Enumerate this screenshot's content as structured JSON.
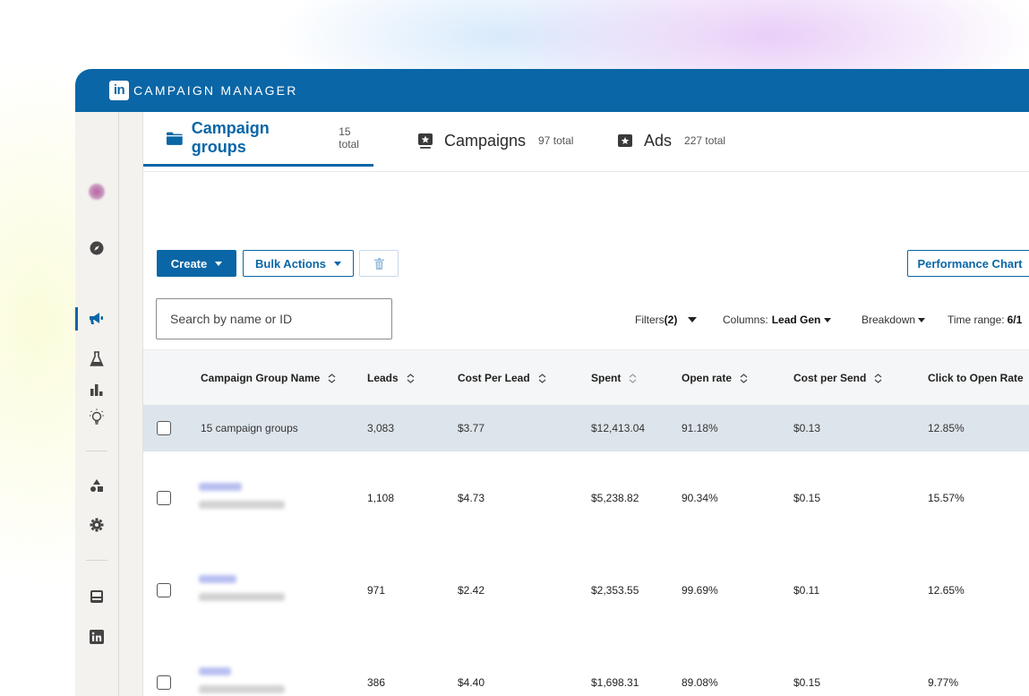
{
  "app": {
    "logo_text": "in",
    "title": "CAMPAIGN MANAGER"
  },
  "sidebar": {
    "items": [
      {
        "name": "account-avatar",
        "icon": "avatar"
      },
      {
        "name": "sidebar-item-discover",
        "icon": "compass-icon"
      },
      {
        "name": "sidebar-item-campaigns",
        "icon": "megaphone-icon",
        "active": true
      },
      {
        "name": "sidebar-item-tests",
        "icon": "flask-icon"
      },
      {
        "name": "sidebar-item-analyze",
        "icon": "bar-chart-icon"
      },
      {
        "name": "sidebar-item-insights",
        "icon": "lightbulb-icon"
      },
      {
        "name": "sidebar-item-assets",
        "icon": "shapes-icon"
      },
      {
        "name": "sidebar-item-settings",
        "icon": "gear-icon"
      },
      {
        "name": "sidebar-item-pages",
        "icon": "page-card-icon"
      },
      {
        "name": "sidebar-item-linkedin",
        "icon": "linkedin-icon"
      }
    ]
  },
  "tabs": [
    {
      "label": "Campaign groups",
      "count": "15 total",
      "icon": "folder-icon",
      "active": true
    },
    {
      "label": "Campaigns",
      "count": "97 total",
      "icon": "campaign-icon",
      "active": false
    },
    {
      "label": "Ads",
      "count": "227 total",
      "icon": "ad-star-icon",
      "active": false
    }
  ],
  "toolbar": {
    "create_label": "Create",
    "bulk_actions_label": "Bulk Actions",
    "delete_icon": "trash-icon",
    "performance_chart_label": "Performance Chart"
  },
  "search": {
    "placeholder": "Search by name or ID"
  },
  "filters": {
    "filters_label": "Filters",
    "filters_count": "(2)",
    "columns_label": "Columns: ",
    "columns_value": "Lead Gen",
    "breakdown_label": "Breakdown",
    "time_range_label": "Time range: ",
    "time_range_value": "6/1"
  },
  "table": {
    "columns": [
      "Campaign Group Name",
      "Leads",
      "Cost Per Lead",
      "Spent",
      "Open rate",
      "Cost per Send",
      "Click to Open Rate"
    ],
    "summary": {
      "name": "15 campaign groups",
      "leads": "3,083",
      "cost_per_lead": "$3.77",
      "spent": "$12,413.04",
      "open_rate": "91.18%",
      "cost_per_send": "$0.13",
      "click_to_open_rate": "12.85%"
    },
    "rows": [
      {
        "leads": "1,108",
        "cost_per_lead": "$4.73",
        "spent": "$5,238.82",
        "open_rate": "90.34%",
        "cost_per_send": "$0.15",
        "click_to_open_rate": "15.57%"
      },
      {
        "leads": "971",
        "cost_per_lead": "$2.42",
        "spent": "$2,353.55",
        "open_rate": "99.69%",
        "cost_per_send": "$0.11",
        "click_to_open_rate": "12.65%"
      },
      {
        "leads": "386",
        "cost_per_lead": "$4.40",
        "spent": "$1,698.31",
        "open_rate": "89.08%",
        "cost_per_send": "$0.15",
        "click_to_open_rate": "9.77%"
      }
    ]
  },
  "colors": {
    "brand": "#0a66a6",
    "summary_row": "#dde5ec",
    "header_row": "#f5f6f7"
  }
}
